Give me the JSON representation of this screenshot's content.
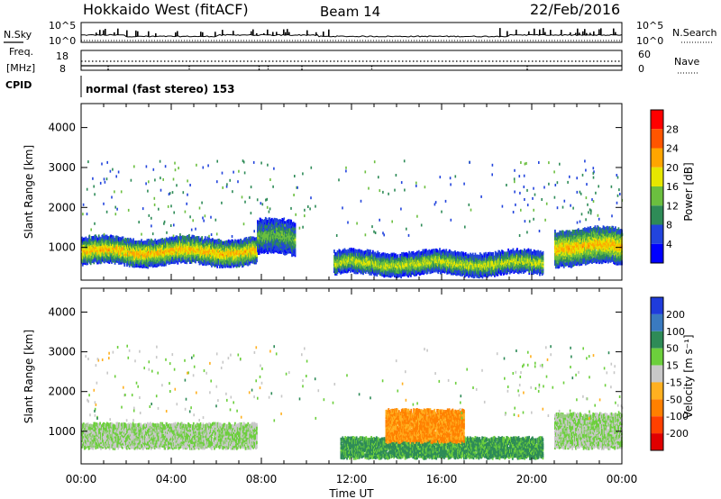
{
  "header": {
    "station": "Hokkaido West (fitACF)",
    "beam": "Beam 14",
    "date": "22/Feb/2016"
  },
  "noise_panel": {
    "left_label": "N.Sky",
    "right_label": "N.Search",
    "ticks": [
      "10^5",
      "10^0"
    ]
  },
  "freq_panel": {
    "left_label_line1": "Freq.",
    "left_label_line2": "[MHz]",
    "left_ticks": [
      "18",
      "8"
    ],
    "right_label": "Nave",
    "right_ticks": [
      "60",
      "0"
    ]
  },
  "cpid": {
    "label": "CPID",
    "mode": "normal (fast stereo) 153"
  },
  "chart_data": [
    {
      "type": "heatmap",
      "name": "power",
      "ylabel": "Slant Range [km]",
      "xlabel": "",
      "x_ticks": [
        "00:00",
        "04:00",
        "08:00",
        "12:00",
        "16:00",
        "20:00",
        "00:00"
      ],
      "x_range_hours": [
        0,
        24
      ],
      "y_ticks": [
        1000,
        2000,
        3000,
        4000
      ],
      "ylim": [
        180,
        4600
      ],
      "colorbar": {
        "label": "Power [dB]",
        "ticks": [
          "4",
          "8",
          "12",
          "16",
          "20",
          "24",
          "28"
        ],
        "colors": [
          "#0000ff",
          "#2244dd",
          "#2e8b57",
          "#6bbf3f",
          "#e6e600",
          "#ffa500",
          "#ff5500",
          "#ff0000"
        ]
      },
      "bands": [
        {
          "t0": 0.0,
          "t1": 7.8,
          "r0": 650,
          "r1": 1250,
          "peak_db": 22
        },
        {
          "t0": 7.8,
          "t1": 9.5,
          "r0": 900,
          "r1": 1700,
          "peak_db": 14
        },
        {
          "t0": 11.2,
          "t1": 20.5,
          "r0": 400,
          "r1": 900,
          "peak_db": 18
        },
        {
          "t0": 21.0,
          "t1": 24.0,
          "r0": 650,
          "r1": 1500,
          "peak_db": 22
        }
      ]
    },
    {
      "type": "heatmap",
      "name": "velocity",
      "ylabel": "Slant Range [km]",
      "xlabel": "Time UT",
      "x_ticks": [
        "00:00",
        "04:00",
        "08:00",
        "12:00",
        "16:00",
        "20:00",
        "00:00"
      ],
      "x_range_hours": [
        0,
        24
      ],
      "y_ticks": [
        1000,
        2000,
        3000,
        4000
      ],
      "ylim": [
        180,
        4600
      ],
      "colorbar": {
        "label": "Velocity [m s⁻¹]",
        "ticks": [
          "200",
          "100",
          "50",
          "15",
          "-15",
          "-50",
          "-100",
          "-200"
        ],
        "colors": [
          "#1f3cdb",
          "#3a7ac0",
          "#2e8b57",
          "#6ccf3c",
          "#c8c8c8",
          "#ffb020",
          "#ff8000",
          "#ff4000",
          "#e00000"
        ]
      },
      "bands": [
        {
          "t0": 0.0,
          "t1": 7.8,
          "r0": 650,
          "r1": 1250,
          "vel": 0
        },
        {
          "t0": 11.5,
          "t1": 20.5,
          "r0": 400,
          "r1": 900,
          "vel": 40
        },
        {
          "t0": 13.5,
          "t1": 17.0,
          "r0": 800,
          "r1": 1600,
          "vel": -80
        },
        {
          "t0": 21.0,
          "t1": 24.0,
          "r0": 650,
          "r1": 1500,
          "vel": 0
        }
      ]
    }
  ]
}
